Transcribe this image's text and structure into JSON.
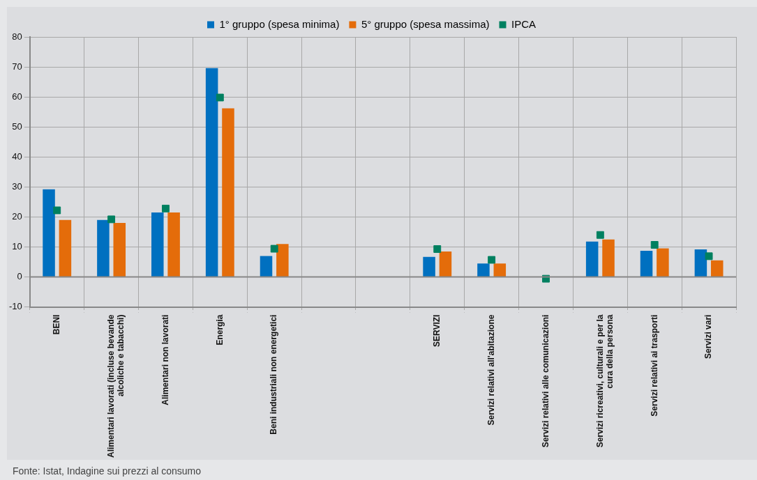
{
  "chart_data": {
    "type": "bar",
    "categories": [
      "BENI",
      "Alimentari lavorati (incluse bevande alcoliche e tabacchi)",
      "Alimentari non lavorati",
      "Energia",
      "Beni industriali non energetici",
      null,
      null,
      "SERVIZI",
      "Servizi relativi all'abitazione",
      "Servizi relativi alle comunicazioni",
      "Servizi ricreativi, culturali e per la cura della persona",
      "Servizi relativi ai trasporti",
      "Servizi vari"
    ],
    "series": [
      {
        "name": "1° gruppo (spesa minima)",
        "color": "#0070c0",
        "values": [
          29.2,
          19,
          21.5,
          69.6,
          7,
          null,
          null,
          6.7,
          4.5,
          null,
          11.8,
          8.7,
          9.2
        ]
      },
      {
        "name": "5° gruppo (spesa massima)",
        "color": "#e46c0a",
        "values": [
          19,
          18,
          21.5,
          56.2,
          11,
          null,
          null,
          8.5,
          4.5,
          null,
          12.5,
          9.5,
          5.5
        ]
      },
      {
        "name": "IPCA",
        "type": "scatter",
        "color": "#008060",
        "values": [
          22.2,
          19.2,
          22.8,
          59.8,
          9.4,
          null,
          null,
          9.3,
          5.7,
          -0.6,
          14,
          10.7,
          6.9
        ]
      }
    ],
    "ylim": [
      -10,
      80
    ],
    "yticks": [
      -10,
      0,
      10,
      20,
      30,
      40,
      50,
      60,
      70,
      80
    ],
    "grid": true,
    "legend": "top",
    "marker": "square",
    "annotations": [
      "Fonte: Istat, Indagine sui prezzi al consumo"
    ]
  }
}
